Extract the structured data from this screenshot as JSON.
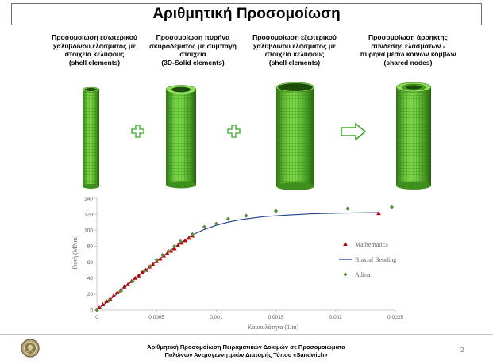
{
  "slide": {
    "title": "Αριθμητική Προσομοίωση",
    "captions": [
      [
        "Προσομοίωση εσωτερικού",
        "χαλύβδινου ελάσματος με",
        "στοιχεία κελύφους",
        "(shell elements)"
      ],
      [
        "Προσομοίωση πυρήνα",
        "σκυροδέματος με συμπαγή",
        "στοιχεία",
        "(3D-Solid elements)"
      ],
      [
        "Προσομοίωση εξωτερικού",
        "χαλύβδινου ελάσματος με",
        "στοιχεία κελύφους",
        "(shell elements)"
      ],
      [
        "Προσομοίωση άρρηκτης",
        "σύνδεσης ελασμάτων -",
        "πυρήνα μέσω κοινών κόμβων",
        "(shared nodes)"
      ]
    ],
    "footer": [
      "Αριθμητική Προσομοίωση Πειραματικών Δοκιμών σε Προσομοιώματα",
      "Πυλώνων Ανεμογεννητριών Διατομής Τύπου «Sandwich»"
    ],
    "page_number": "2",
    "colors": {
      "mesh_green": "#5cb82e",
      "mesh_line": "#2f6b12",
      "plus_green": "#57b947",
      "arrow_green": "#43a52d"
    }
  },
  "chart_data": {
    "type": "scatter",
    "xlabel": "Καμπυλότητα (1/m)",
    "ylabel": "Ροπή (MNm)",
    "xlim": [
      0,
      0.0025
    ],
    "ylim": [
      0,
      140
    ],
    "x_ticks": [
      "0",
      "0,0005",
      "0,001",
      "0,0015",
      "0,002",
      "0,0025"
    ],
    "x_tick_values": [
      0,
      0.0005,
      0.001,
      0.0015,
      0.002,
      0.0025
    ],
    "y_ticks": [
      "0",
      "20",
      "40",
      "60",
      "80",
      "100",
      "120",
      "140"
    ],
    "y_tick_values": [
      0,
      20,
      40,
      60,
      80,
      100,
      120,
      140
    ],
    "grid": false,
    "legend_position": "right",
    "series": [
      {
        "name": "Mathematica",
        "kind": "marker",
        "marker": "triangle",
        "color": "#c00000",
        "x": [
          2e-05,
          5e-05,
          8e-05,
          0.00011,
          0.00014,
          0.00017,
          0.0002,
          0.00023,
          0.00026,
          0.00029,
          0.00032,
          0.00035,
          0.00038,
          0.00041,
          0.00044,
          0.00047,
          0.0005,
          0.00053,
          0.00056,
          0.00059,
          0.00062,
          0.00065,
          0.00068,
          0.00071,
          0.00074,
          0.00077,
          0.0008,
          0.00236
        ],
        "y": [
          3,
          7,
          11,
          14,
          18,
          22,
          25,
          29,
          32,
          36,
          40,
          43,
          47,
          50,
          54,
          57,
          61,
          64,
          68,
          71,
          74,
          77,
          81,
          84,
          87,
          90,
          93,
          121
        ]
      },
      {
        "name": "Biaxial Bending",
        "kind": "line",
        "color": "#1f3f8f",
        "x": [
          0,
          0.0001,
          0.0002,
          0.0003,
          0.0004,
          0.0005,
          0.0006,
          0.0007,
          0.0008,
          0.0009,
          0.001,
          0.0011,
          0.0012,
          0.0014,
          0.0016,
          0.0018,
          0.002,
          0.0022,
          0.00236
        ],
        "y": [
          0,
          12,
          24,
          37,
          49,
          61,
          73,
          84,
          94,
          101,
          106,
          110,
          113,
          117,
          119,
          120.5,
          121.3,
          121.8,
          122
        ]
      },
      {
        "name": "Adina",
        "kind": "marker",
        "marker": "diamond",
        "color": "#5a8f3a",
        "x": [
          0,
          0.0001,
          0.0002,
          0.0003,
          0.0004,
          0.00045,
          0.0005,
          0.00055,
          0.0006,
          0.00065,
          0.0007,
          0.0008,
          0.0009,
          0.001,
          0.0011,
          0.00125,
          0.0015,
          0.0021,
          0.00247
        ],
        "y": [
          0,
          12,
          24,
          36,
          49,
          55,
          63,
          69,
          74,
          80,
          86,
          95,
          104,
          108,
          114,
          118,
          124,
          127,
          129
        ]
      }
    ]
  }
}
